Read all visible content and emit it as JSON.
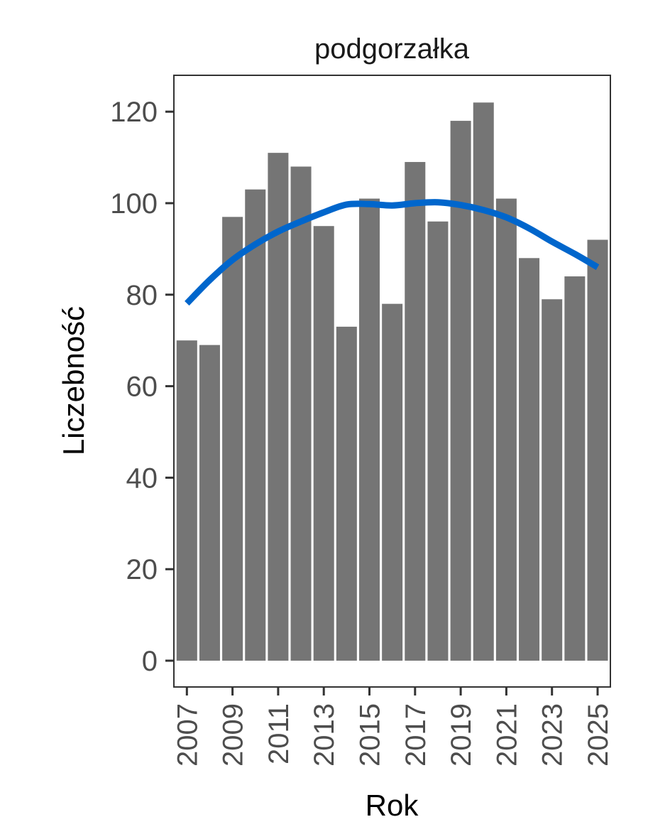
{
  "chart_data": {
    "type": "bar",
    "title": "podgorzałka",
    "xlabel": "Rok",
    "ylabel": "Liczebność",
    "ylim": [
      -6,
      128
    ],
    "yticks": [
      0,
      20,
      40,
      60,
      80,
      100,
      120
    ],
    "xticks": [
      2007,
      2009,
      2011,
      2013,
      2015,
      2017,
      2019,
      2021,
      2023,
      2025
    ],
    "grid": false,
    "categories": [
      2007,
      2008,
      2009,
      2010,
      2011,
      2012,
      2013,
      2014,
      2015,
      2016,
      2017,
      2018,
      2019,
      2020,
      2021,
      2022,
      2023,
      2024,
      2025
    ],
    "values": [
      70,
      69,
      97,
      103,
      111,
      108,
      95,
      73,
      101,
      78,
      109,
      96,
      118,
      122,
      101,
      88,
      79,
      84,
      92
    ],
    "series": [
      {
        "name": "Liczebność",
        "type": "bar",
        "color": "#757575",
        "values": [
          70,
          69,
          97,
          103,
          111,
          108,
          95,
          73,
          101,
          78,
          109,
          96,
          118,
          122,
          101,
          88,
          79,
          84,
          92
        ]
      },
      {
        "name": "trend (smooth)",
        "type": "line",
        "color": "#0066CC",
        "x": [
          2007,
          2008,
          2009,
          2010,
          2011,
          2012,
          2013,
          2014,
          2015,
          2016,
          2017,
          2018,
          2019,
          2020,
          2021,
          2022,
          2023,
          2024,
          2025
        ],
        "values": [
          78.1,
          83.2,
          87.6,
          91.0,
          93.8,
          96.0,
          98.0,
          99.7,
          99.8,
          99.5,
          100.0,
          100.2,
          99.6,
          98.5,
          96.9,
          94.5,
          91.6,
          88.9,
          86.0
        ]
      }
    ],
    "legend": null
  },
  "colors": {
    "bar": "#757575",
    "line": "#0066CC",
    "axis": "#333333",
    "tick_text": "#4d4d4d"
  }
}
